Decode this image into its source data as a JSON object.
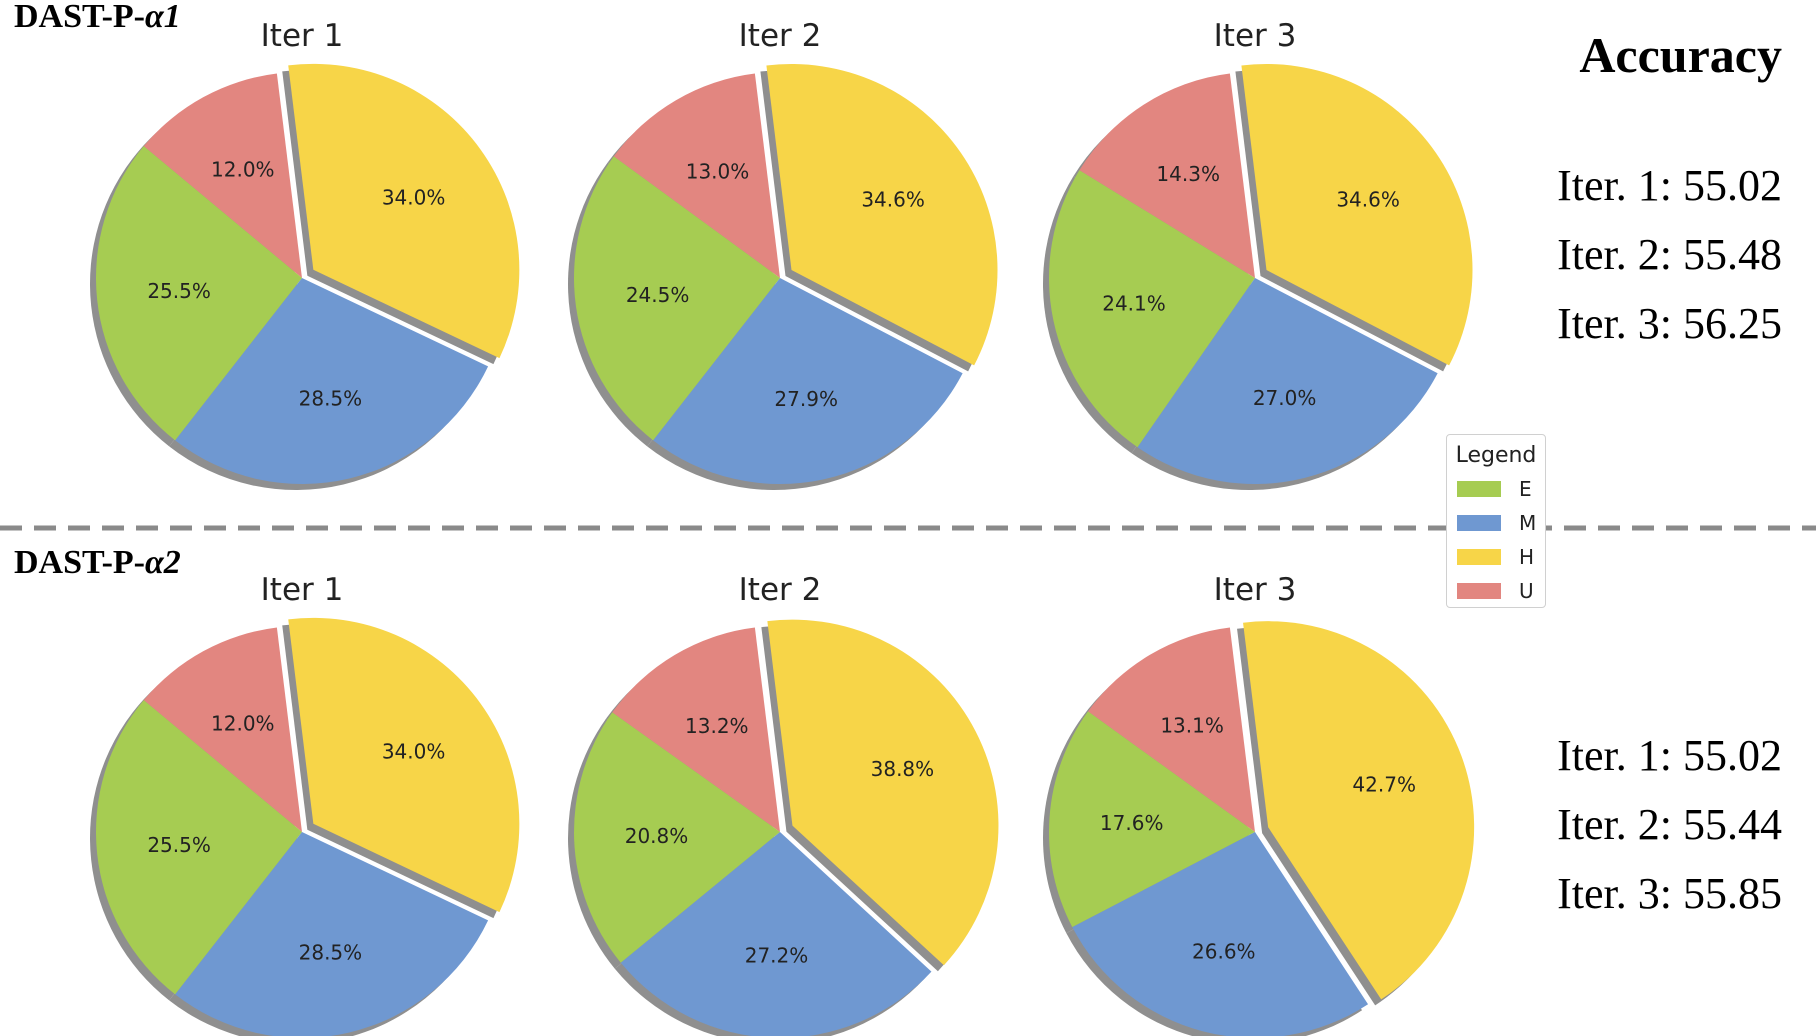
{
  "chart_data": [
    {
      "type": "pie",
      "group": "DAST-P-α1",
      "title": "Iter 1",
      "categories": [
        "E",
        "M",
        "H",
        "U"
      ],
      "values": [
        25.5,
        28.5,
        34.0,
        12.0
      ],
      "labels": [
        "25.5%",
        "28.5%",
        "34.0%",
        "12.0%"
      ],
      "explode": "H"
    },
    {
      "type": "pie",
      "group": "DAST-P-α1",
      "title": "Iter 2",
      "categories": [
        "E",
        "M",
        "H",
        "U"
      ],
      "values": [
        24.5,
        27.9,
        34.6,
        13.0
      ],
      "labels": [
        "24.5%",
        "27.9%",
        "34.6%",
        "13.0%"
      ],
      "explode": "H"
    },
    {
      "type": "pie",
      "group": "DAST-P-α1",
      "title": "Iter 3",
      "categories": [
        "E",
        "M",
        "H",
        "U"
      ],
      "values": [
        24.1,
        27.0,
        34.6,
        14.3
      ],
      "labels": [
        "24.1%",
        "27.0%",
        "34.6%",
        "14.3%"
      ],
      "explode": "H"
    },
    {
      "type": "pie",
      "group": "DAST-P-α2",
      "title": "Iter 1",
      "categories": [
        "E",
        "M",
        "H",
        "U"
      ],
      "values": [
        25.5,
        28.5,
        34.0,
        12.0
      ],
      "labels": [
        "25.5%",
        "28.5%",
        "34.0%",
        "12.0%"
      ],
      "explode": "H"
    },
    {
      "type": "pie",
      "group": "DAST-P-α2",
      "title": "Iter 2",
      "categories": [
        "E",
        "M",
        "H",
        "U"
      ],
      "values": [
        20.8,
        27.2,
        38.8,
        13.2
      ],
      "labels": [
        "20.8%",
        "27.2%",
        "38.8%",
        "13.2%"
      ],
      "explode": "H"
    },
    {
      "type": "pie",
      "group": "DAST-P-α2",
      "title": "Iter 3",
      "categories": [
        "E",
        "M",
        "H",
        "U"
      ],
      "values": [
        17.6,
        26.6,
        42.7,
        13.1
      ],
      "labels": [
        "17.6%",
        "26.6%",
        "42.7%",
        "13.1%"
      ],
      "explode": "H"
    }
  ],
  "colors": {
    "E": "#a6cc52",
    "M": "#6f98d1",
    "H": "#f7d548",
    "U": "#e28680",
    "shadow": "#8f8f8f",
    "divider": "#8a8a8a"
  },
  "row_labels": {
    "top_prefix": "DAST-P-",
    "top_suffix": "α1",
    "bottom_prefix": "DAST-P-",
    "bottom_suffix": "α2"
  },
  "accuracy": {
    "title": "Accuracy",
    "top": [
      "Iter. 1: 55.02",
      "Iter. 2: 55.48",
      "Iter. 3: 56.25"
    ],
    "bottom": [
      "Iter. 1: 55.02",
      "Iter. 2: 55.44",
      "Iter. 3: 55.85"
    ]
  },
  "legend": {
    "title": "Legend",
    "items": [
      "E",
      "M",
      "H",
      "U"
    ]
  }
}
